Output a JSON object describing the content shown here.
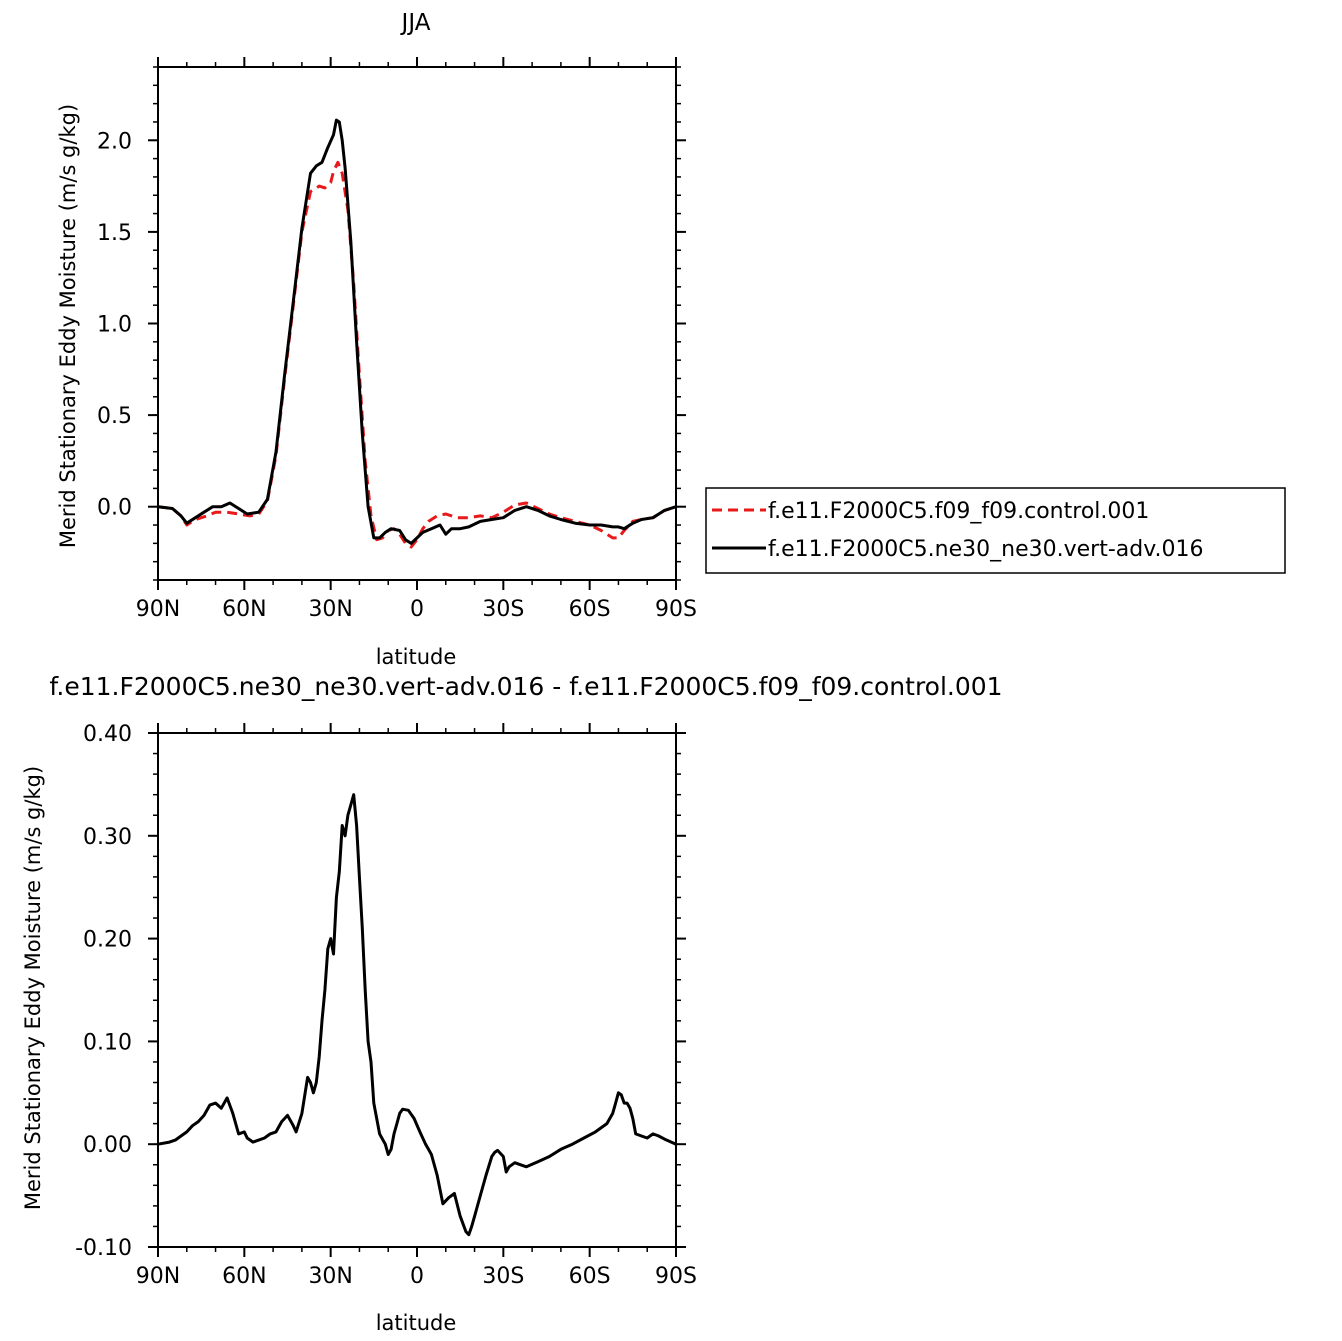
{
  "chart_data": [
    {
      "type": "line",
      "title": "JJA",
      "xlabel": "latitude",
      "ylabel": "Merid Stationary Eddy Moisture (m/s g/kg)",
      "xticks": [
        90,
        60,
        30,
        0,
        -30,
        -60,
        -90
      ],
      "xtick_labels": [
        "90N",
        "60N",
        "30N",
        "0",
        "30S",
        "60S",
        "90S"
      ],
      "xlim": [
        90,
        -90
      ],
      "ylim": [
        -0.4,
        2.4
      ],
      "yticks": [
        0.0,
        0.5,
        1.0,
        1.5,
        2.0
      ],
      "ytick_labels": [
        "0.0",
        "0.5",
        "1.0",
        "1.5",
        "2.0"
      ],
      "grid": false,
      "legend_position": "right",
      "series": [
        {
          "name": "f.e11.F2000C5.f09_f09.control.001",
          "color": "#e8191a",
          "dash": "dashed",
          "x": [
            90,
            85,
            82,
            80,
            77,
            73,
            70,
            66,
            62,
            58,
            55,
            52,
            49,
            46,
            43,
            40,
            37,
            34,
            32,
            30,
            29,
            27.5,
            26,
            24,
            22,
            20,
            18,
            16,
            14,
            12,
            10,
            8,
            6,
            4,
            2,
            0,
            -2,
            -4,
            -7,
            -10,
            -14,
            -18,
            -22,
            -26,
            -30,
            -34,
            -38,
            -42,
            -46,
            -50,
            -55,
            -60,
            -64,
            -68,
            -70,
            -72,
            -75,
            -78,
            -82,
            -86,
            -90
          ],
          "y": [
            0.0,
            -0.01,
            -0.05,
            -0.1,
            -0.07,
            -0.05,
            -0.03,
            -0.03,
            -0.04,
            -0.05,
            -0.04,
            0.03,
            0.28,
            0.7,
            1.1,
            1.5,
            1.72,
            1.75,
            1.74,
            1.77,
            1.83,
            1.88,
            1.82,
            1.62,
            1.22,
            0.72,
            0.25,
            -0.05,
            -0.18,
            -0.17,
            -0.13,
            -0.12,
            -0.15,
            -0.2,
            -0.22,
            -0.18,
            -0.12,
            -0.08,
            -0.05,
            -0.04,
            -0.06,
            -0.06,
            -0.05,
            -0.06,
            -0.03,
            0.01,
            0.02,
            -0.01,
            -0.04,
            -0.06,
            -0.08,
            -0.1,
            -0.13,
            -0.17,
            -0.17,
            -0.13,
            -0.08,
            -0.07,
            -0.06,
            -0.02,
            0.0
          ]
        },
        {
          "name": "f.e11.F2000C5.ne30_ne30.vert-adv.016",
          "color": "#000000",
          "dash": "solid",
          "x": [
            90,
            85,
            82,
            80,
            77,
            74,
            71,
            68,
            65,
            62,
            59,
            55,
            52,
            49,
            46,
            43,
            40,
            37,
            35,
            33,
            31,
            29,
            28,
            27,
            26,
            25,
            23,
            21,
            19,
            17,
            15,
            13,
            11,
            9,
            6,
            4,
            2,
            0,
            -2,
            -5,
            -8,
            -10,
            -12,
            -15,
            -18,
            -22,
            -26,
            -30,
            -34,
            -38,
            -42,
            -46,
            -50,
            -55,
            -60,
            -64,
            -68,
            -70,
            -72,
            -75,
            -78,
            -82,
            -86,
            -90
          ],
          "y": [
            0.0,
            -0.01,
            -0.05,
            -0.09,
            -0.06,
            -0.03,
            0.0,
            0.0,
            0.02,
            -0.01,
            -0.04,
            -0.03,
            0.04,
            0.3,
            0.72,
            1.12,
            1.52,
            1.82,
            1.86,
            1.88,
            1.96,
            2.03,
            2.11,
            2.1,
            2.0,
            1.85,
            1.45,
            0.9,
            0.4,
            0.0,
            -0.17,
            -0.17,
            -0.14,
            -0.12,
            -0.13,
            -0.18,
            -0.2,
            -0.17,
            -0.14,
            -0.12,
            -0.1,
            -0.15,
            -0.12,
            -0.12,
            -0.11,
            -0.08,
            -0.07,
            -0.06,
            -0.02,
            0.0,
            -0.02,
            -0.05,
            -0.07,
            -0.09,
            -0.1,
            -0.1,
            -0.11,
            -0.11,
            -0.12,
            -0.09,
            -0.07,
            -0.06,
            -0.02,
            0.0
          ]
        }
      ]
    },
    {
      "type": "line",
      "title": "f.e11.F2000C5.ne30_ne30.vert-adv.016 - f.e11.F2000C5.f09_f09.control.001",
      "xlabel": "latitude",
      "ylabel": "Merid Stationary Eddy Moisture (m/s g/kg)",
      "xticks": [
        90,
        60,
        30,
        0,
        -30,
        -60,
        -90
      ],
      "xtick_labels": [
        "90N",
        "60N",
        "30N",
        "0",
        "30S",
        "60S",
        "90S"
      ],
      "xlim": [
        90,
        -90
      ],
      "ylim": [
        -0.1,
        0.4
      ],
      "yticks": [
        -0.1,
        0.0,
        0.1,
        0.2,
        0.3,
        0.4
      ],
      "ytick_labels": [
        "-0.10",
        "0.00",
        "0.10",
        "0.20",
        "0.30",
        "0.40"
      ],
      "grid": false,
      "series": [
        {
          "color": "#000000",
          "dash": "solid",
          "x": [
            90,
            86,
            84,
            82,
            80,
            78,
            76,
            74,
            72,
            70,
            68,
            66,
            64,
            62,
            60,
            59,
            57,
            55,
            53,
            51,
            49,
            47,
            45,
            43,
            42,
            40,
            38,
            37,
            36,
            35,
            34,
            33,
            32,
            31,
            30,
            29,
            28,
            27,
            26,
            25,
            24,
            23,
            22,
            21,
            20,
            19,
            18,
            17,
            16,
            15,
            13,
            11,
            10,
            9,
            8,
            7,
            6,
            5,
            3,
            1,
            -1,
            -3,
            -4,
            -5,
            -7,
            -9,
            -11,
            -13,
            -15,
            -17,
            -18,
            -19,
            -20,
            -22,
            -24,
            -26,
            -27,
            -28,
            -30,
            -31,
            -32,
            -34,
            -36,
            -38,
            -42,
            -46,
            -50,
            -54,
            -58,
            -62,
            -66,
            -68,
            -69,
            -70,
            -71,
            -72,
            -73,
            -74,
            -75,
            -76,
            -78,
            -80,
            -82,
            -84,
            -86,
            -90
          ],
          "y": [
            0.0,
            0.002,
            0.004,
            0.008,
            0.012,
            0.018,
            0.022,
            0.028,
            0.038,
            0.04,
            0.035,
            0.045,
            0.03,
            0.01,
            0.012,
            0.006,
            0.002,
            0.004,
            0.006,
            0.01,
            0.012,
            0.022,
            0.028,
            0.018,
            0.012,
            0.03,
            0.065,
            0.06,
            0.05,
            0.06,
            0.085,
            0.12,
            0.15,
            0.19,
            0.2,
            0.185,
            0.24,
            0.265,
            0.31,
            0.3,
            0.32,
            0.33,
            0.34,
            0.31,
            0.26,
            0.21,
            0.15,
            0.1,
            0.08,
            0.04,
            0.01,
            0.0,
            -0.01,
            -0.005,
            0.01,
            0.02,
            0.03,
            0.034,
            0.033,
            0.025,
            0.012,
            0.0,
            -0.005,
            -0.01,
            -0.03,
            -0.058,
            -0.052,
            -0.048,
            -0.07,
            -0.085,
            -0.088,
            -0.08,
            -0.07,
            -0.05,
            -0.03,
            -0.012,
            -0.008,
            -0.006,
            -0.012,
            -0.027,
            -0.022,
            -0.018,
            -0.02,
            -0.022,
            -0.017,
            -0.012,
            -0.005,
            0.0,
            0.006,
            0.012,
            0.02,
            0.03,
            0.04,
            0.05,
            0.048,
            0.04,
            0.04,
            0.035,
            0.025,
            0.01,
            0.008,
            0.006,
            0.01,
            0.008,
            0.005,
            0.0
          ]
        }
      ]
    }
  ]
}
